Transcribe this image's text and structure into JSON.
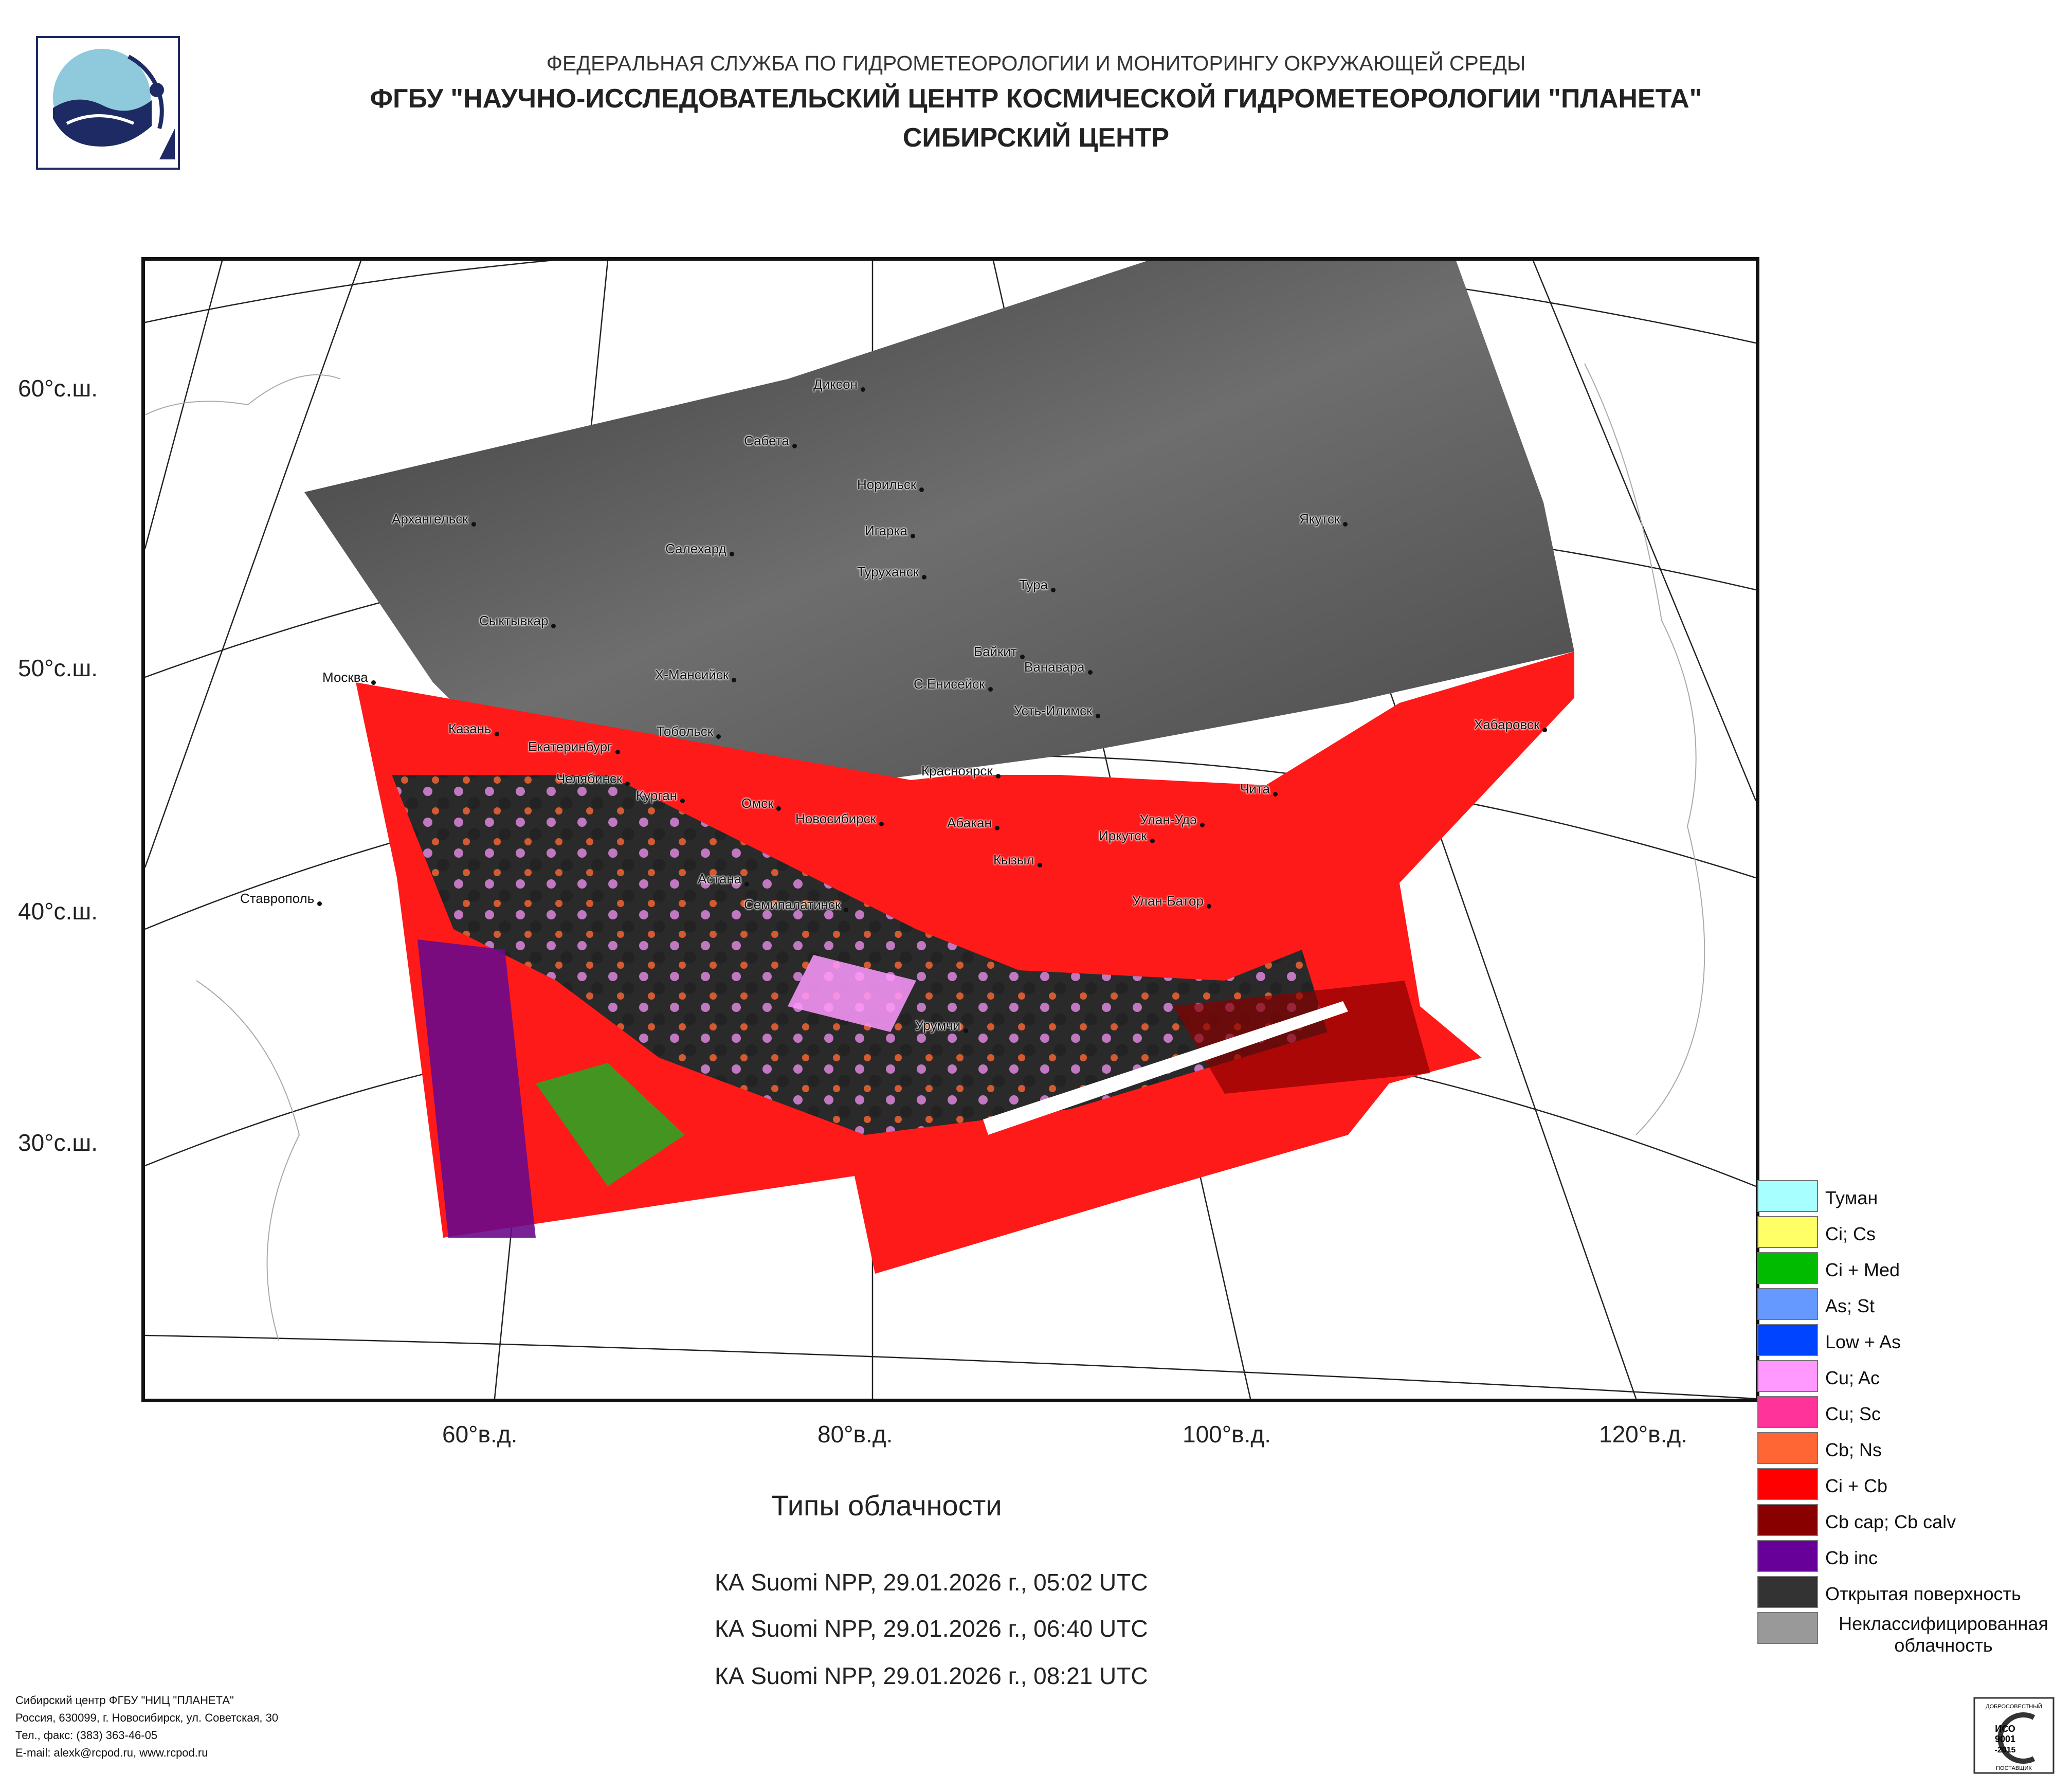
{
  "header": {
    "agency": "ФЕДЕРАЛЬНАЯ СЛУЖБА ПО ГИДРОМЕТЕОРОЛОГИИ И МОНИТОРИНГУ ОКРУЖАЮЩЕЙ СРЕДЫ",
    "organization": "ФГБУ \"НАУЧНО-ИССЛЕДОВАТЕЛЬСКИЙ ЦЕНТР КОСМИЧЕСКОЙ ГИДРОМЕТЕОРОЛОГИИ \"ПЛАНЕТА\"",
    "center": "СИБИРСКИЙ ЦЕНТР",
    "logo_icon": "planeta-logo-icon"
  },
  "map": {
    "lat_labels": [
      "60°с.ш.",
      "50°с.ш.",
      "40°с.ш.",
      "30°с.ш."
    ],
    "lon_labels": [
      "60°в.д.",
      "80°в.д.",
      "100°в.д.",
      "120°в.д."
    ],
    "cities": [
      "Диксон",
      "Сабета",
      "Норильск",
      "Архангельск",
      "Игарка",
      "Салехард",
      "Туруханск",
      "Якутск",
      "Тура",
      "Сыктывкар",
      "Байкит",
      "Ванавара",
      "Москва",
      "Х-Мансийск",
      "С.Енисейск",
      "Усть-Илимск",
      "Казань",
      "Тобольск",
      "Хабаровск",
      "Екатеринбург",
      "Челябинск",
      "Красноярск",
      "Курган",
      "Чита",
      "Омск",
      "Новосибирск",
      "Абакан",
      "Улан-Удэ",
      "Иркутск",
      "Кызыл",
      "Астана",
      "Ставрополь",
      "Семипалатинск",
      "Улан-Батор",
      "Урумчи"
    ]
  },
  "legend": {
    "title": "Типы облачности",
    "items": [
      {
        "label": "Туман",
        "color": "#a8ffff"
      },
      {
        "label": "Ci; Cs",
        "color": "#ffff66"
      },
      {
        "label": "Ci + Med",
        "color": "#00bb00"
      },
      {
        "label": "As; St",
        "color": "#6699ff"
      },
      {
        "label": "Low + As",
        "color": "#0044ff"
      },
      {
        "label": "Cu; Ac",
        "color": "#ff99ff"
      },
      {
        "label": "Cu; Sc",
        "color": "#ff3399"
      },
      {
        "label": "Cb; Ns",
        "color": "#ff6633"
      },
      {
        "label": "Ci + Cb",
        "color": "#ff0000"
      },
      {
        "label": "Cb cap; Cb calv",
        "color": "#880000"
      },
      {
        "label": "Cb inc",
        "color": "#660099"
      },
      {
        "label": "Открытая поверхность",
        "color": "#333333"
      },
      {
        "label": "Неклассифицированная облачность",
        "color": "#999999"
      }
    ]
  },
  "passes": [
    "КА Suomi NPP, 29.01.2026 г., 05:02 UTC",
    "КА Suomi NPP, 29.01.2026 г., 06:40 UTC",
    "КА Suomi NPP, 29.01.2026 г., 08:21 UTC"
  ],
  "footer": {
    "line1": "Сибирский центр ФГБУ \"НИЦ \"ПЛАНЕТА\"",
    "line2": "Россия, 630099, г. Новосибирск, ул. Советская, 30",
    "line3": "Тел., факс: (383) 363-46-05",
    "line4": "E-mail: alexk@rcpod.ru, www.rcpod.ru"
  },
  "iso_badge": {
    "top_text": "ДОБРОСОВЕСТНЫЙ",
    "standard": "ИСО",
    "number": "9001",
    "year": "-2015",
    "bottom_text": "ПОСТАВЩИК"
  }
}
